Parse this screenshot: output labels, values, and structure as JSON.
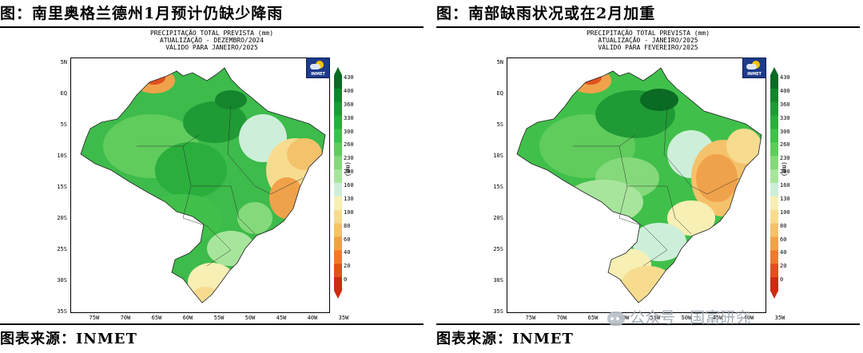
{
  "panels": [
    {
      "title": "图：南里奥格兰德州1月预计仍缺少降雨",
      "map_header": [
        "PRECIPITAÇÃO TOTAL PREVISTA (mm)",
        "ATUALIZAÇÃO - DEZEMBRO/2024",
        "VÁLIDO PARA JANEIRO/2025"
      ],
      "source": "图表来源：INMET"
    },
    {
      "title": "图：南部缺雨状况或在2月加重",
      "map_header": [
        "PRECIPITAÇÃO TOTAL PREVISTA (mm)",
        "ATUALIZAÇÃO - JANEIRO/2025",
        "VÁLIDO PARA FEVEREIRO/2025"
      ],
      "source": "图表来源：INMET"
    }
  ],
  "axes": {
    "lat_labels": [
      "5N",
      "EQ",
      "5S",
      "10S",
      "15S",
      "20S",
      "25S",
      "30S",
      "35S"
    ],
    "lon_labels": [
      "75W",
      "70W",
      "65W",
      "60W",
      "55W",
      "50W",
      "45W",
      "40W",
      "35W"
    ]
  },
  "logo_text": "INMET",
  "colorbar": {
    "unit": "(mm)",
    "ticks": [
      "430",
      "400",
      "360",
      "330",
      "300",
      "260",
      "230",
      "200",
      "160",
      "130",
      "100",
      "80",
      "60",
      "40",
      "20",
      "0"
    ],
    "colors": [
      "#0b6a23",
      "#14852c",
      "#1f9a35",
      "#2aae3c",
      "#40c04a",
      "#5fcc5c",
      "#84d97a",
      "#a8e59c",
      "#cdefd9",
      "#f7efb4",
      "#f7dc90",
      "#f4c26b",
      "#f0a24a",
      "#ec7b30",
      "#e2501e",
      "#cf2a12"
    ]
  },
  "watermark": "公众号 · 国富研究"
}
